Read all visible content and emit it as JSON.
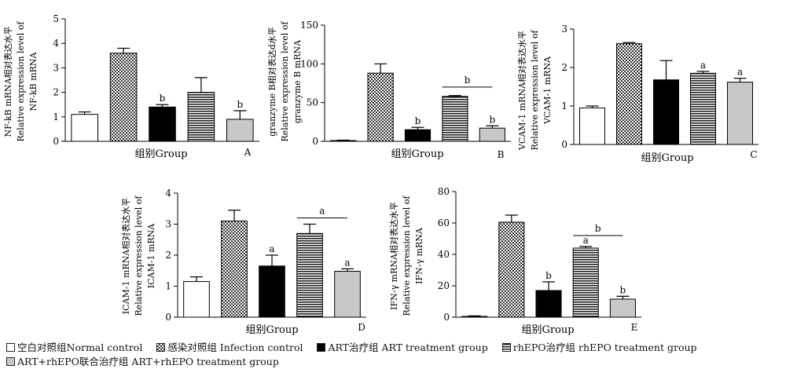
{
  "patterns": {
    "normal": {
      "fill": "#ffffff",
      "pattern": "none"
    },
    "infection": {
      "fill": "#777777",
      "pattern": "checker"
    },
    "art": {
      "fill": "#000000",
      "pattern": "none"
    },
    "rhepo": {
      "fill": "#666666",
      "pattern": "horizontal-stripes"
    },
    "combo": {
      "fill": "#c8c8c8",
      "pattern": "none"
    }
  },
  "legend": [
    {
      "key": "normal",
      "label": "空白对照组Normal  control"
    },
    {
      "key": "infection",
      "label": "感染对照组  Infection  control"
    },
    {
      "key": "art",
      "label": "ART治疗组  ART  treatment  group"
    },
    {
      "key": "rhepo",
      "label": "rhEPO治疗组  rhEPO  treatment  group"
    },
    {
      "key": "combo",
      "label": "ART+rhEPO联合治疗组  ART+rhEPO  treatment  group"
    }
  ],
  "chart_data": [
    {
      "type": "bar",
      "panel": "A",
      "ylabel": [
        "NF-kB  mRNA相对表达水平",
        "Relative  expression  level  of",
        "NF-kB  mRNA"
      ],
      "xlabel": "组别Group",
      "ylim": [
        0,
        5
      ],
      "yticks": [
        0,
        1,
        2,
        3,
        4,
        5
      ],
      "groups": [
        "normal",
        "infection",
        "art",
        "rhepo",
        "combo"
      ],
      "values": [
        1.1,
        3.6,
        1.4,
        2.0,
        0.9
      ],
      "errors": [
        0.1,
        0.2,
        0.1,
        0.6,
        0.35
      ],
      "marks": [
        "",
        "",
        "b",
        "",
        "b"
      ],
      "brackets": []
    },
    {
      "type": "bar",
      "panel": "B",
      "ylabel": [
        "granzyme  B相对表达d水平",
        "Relative  expression  level  of",
        "granzyme  B  mRNA"
      ],
      "xlabel": "组别Group",
      "ylim": [
        0,
        150
      ],
      "yticks": [
        0,
        50,
        100,
        150
      ],
      "groups": [
        "normal",
        "infection",
        "art",
        "rhepo",
        "combo"
      ],
      "values": [
        1,
        88,
        15,
        58,
        17
      ],
      "errors": [
        0.5,
        12,
        3,
        1,
        3
      ],
      "marks": [
        "",
        "",
        "b",
        "",
        "b"
      ],
      "brackets": [
        {
          "from": 3,
          "to": 4,
          "label": "b",
          "y": 70
        }
      ]
    },
    {
      "type": "bar",
      "panel": "C",
      "ylabel": [
        "VCAM-1  mRNA相对表达水平",
        "Relative  expression  level  of",
        "VCAM-1  mRNA"
      ],
      "xlabel": "组别Group",
      "ylim": [
        0,
        3
      ],
      "yticks": [
        0,
        1,
        2,
        3
      ],
      "groups": [
        "normal",
        "infection",
        "art",
        "rhepo",
        "combo"
      ],
      "values": [
        0.95,
        2.62,
        1.68,
        1.85,
        1.62
      ],
      "errors": [
        0.05,
        0.03,
        0.5,
        0.05,
        0.1
      ],
      "marks": [
        "",
        "",
        "",
        "a",
        "a"
      ],
      "brackets": []
    },
    {
      "type": "bar",
      "panel": "D",
      "ylabel": [
        "ICAM-1  mRNA相对表达水平",
        "Relative  expression  level  of",
        "ICAM-1  mRNA"
      ],
      "xlabel": "组别Group",
      "ylim": [
        0,
        4
      ],
      "yticks": [
        0,
        1,
        2,
        3,
        4
      ],
      "groups": [
        "normal",
        "infection",
        "art",
        "rhepo",
        "combo"
      ],
      "values": [
        1.15,
        3.1,
        1.65,
        2.7,
        1.48
      ],
      "errors": [
        0.15,
        0.35,
        0.35,
        0.3,
        0.08
      ],
      "marks": [
        "",
        "",
        "a",
        "",
        "a"
      ],
      "brackets": [
        {
          "from": 3,
          "to": 4,
          "label": "a",
          "y": 3.2
        }
      ]
    },
    {
      "type": "bar",
      "panel": "E",
      "ylabel": [
        "IFN-γ  mRNA相对表达水平",
        "Relative  expression  level  of",
        "IFN-γ  mRNA"
      ],
      "xlabel": "组别Group",
      "ylim": [
        0,
        80
      ],
      "yticks": [
        0,
        20,
        40,
        60,
        80
      ],
      "groups": [
        "normal",
        "infection",
        "art",
        "rhepo",
        "combo"
      ],
      "values": [
        0.5,
        60.5,
        17,
        44,
        11.5
      ],
      "errors": [
        0.3,
        4.5,
        5.5,
        1,
        1.8
      ],
      "marks": [
        "",
        "",
        "b",
        "a",
        "b"
      ],
      "brackets": [
        {
          "from": 3,
          "to": 4,
          "label": "b",
          "y": 52
        }
      ]
    }
  ]
}
